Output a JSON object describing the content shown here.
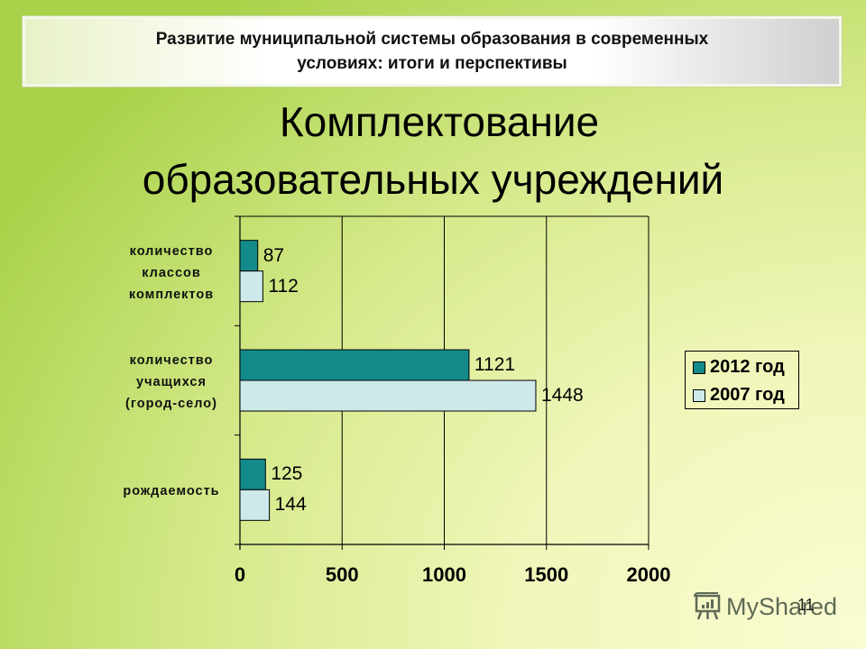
{
  "header": {
    "banner_line1": "Развитие муниципальной системы образования в современных",
    "banner_line2": "условиях: итоги и перспективы"
  },
  "slide": {
    "title_line1": "Комплектование",
    "title_line2": "образовательных учреждений",
    "slide_number": "11",
    "watermark": "MyShared",
    "watermark_icon": "presentation-board-icon"
  },
  "colors": {
    "series_2012": "#138b8a",
    "series_2007": "#cde9ea",
    "axis": "#000000"
  },
  "chart_data": {
    "type": "bar",
    "orientation": "horizontal",
    "title": "Комплектование образовательных учреждений",
    "xlabel": "",
    "ylabel": "",
    "categories": [
      "количество классов комплектов",
      "количество учащихся (город-село)",
      "рождаемость"
    ],
    "series": [
      {
        "name": "2012 год",
        "color": "#138b8a",
        "values": [
          87,
          1121,
          125
        ]
      },
      {
        "name": "2007 год",
        "color": "#cde9ea",
        "values": [
          112,
          1448,
          144
        ]
      }
    ],
    "xlim": [
      0,
      2000
    ],
    "xticks": [
      "0",
      "500",
      "1000",
      "1500",
      "2000"
    ],
    "grid": "vertical major gridlines",
    "legend_position": "right"
  },
  "labels": {
    "cat0_lines": [
      "количество",
      "классов",
      "комплектов"
    ],
    "cat1_lines": [
      "количество",
      "учащихся",
      "(город-село)"
    ],
    "cat2_lines": [
      "рождаемость"
    ]
  }
}
